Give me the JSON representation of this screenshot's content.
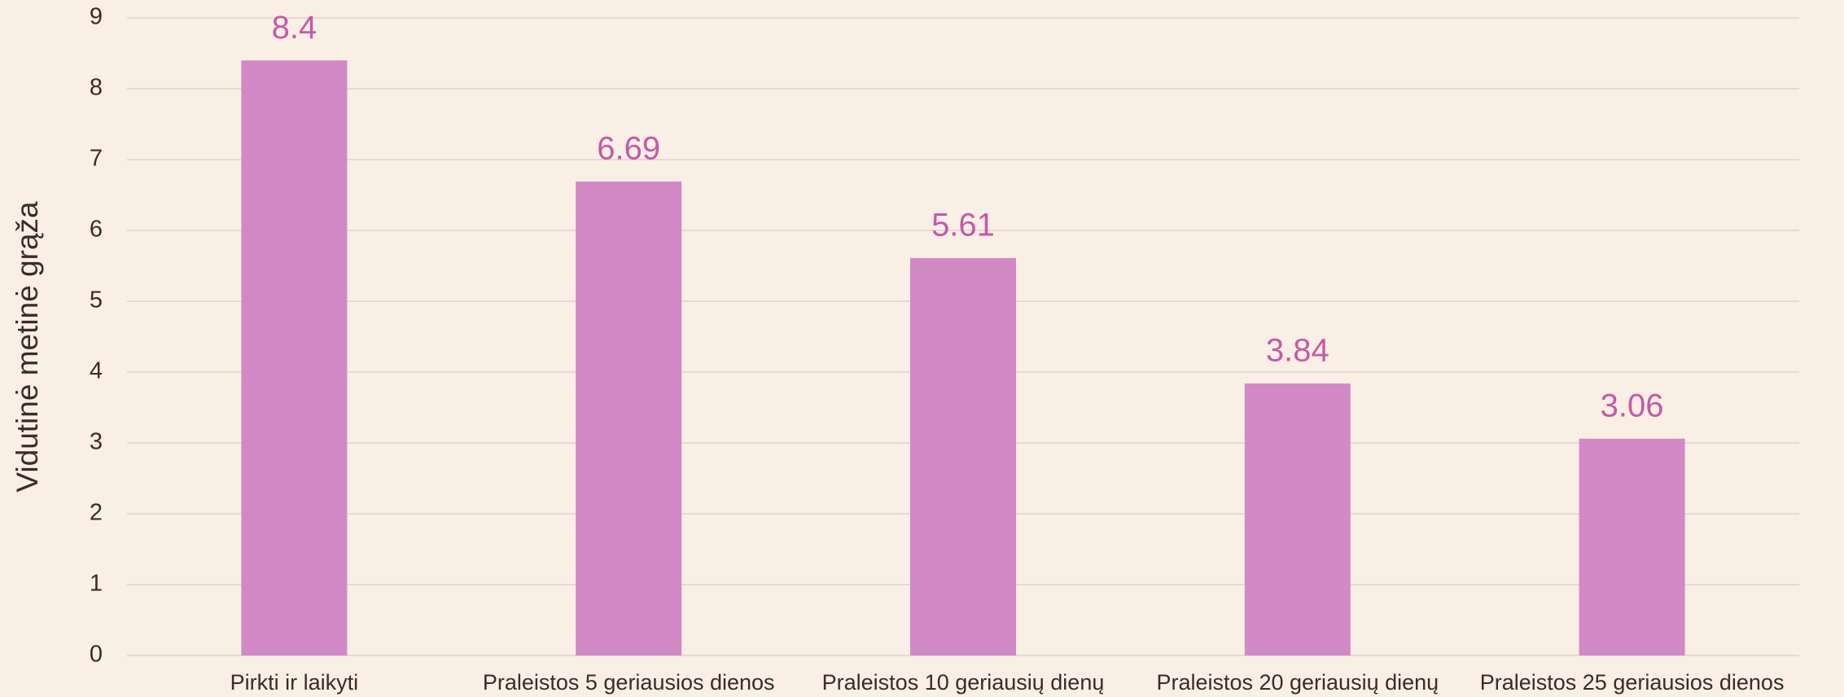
{
  "chart_data": {
    "type": "bar",
    "ylabel": "Vidutinė metinė grąža",
    "categories": [
      "Pirkti ir laikyti",
      "Praleistos 5 geriausios dienos",
      "Praleistos 10 geriausių dienų",
      "Praleistos 20 geriausių dienų",
      "Praleistos 25 geriausios dienos"
    ],
    "values": [
      8.4,
      6.69,
      5.61,
      3.84,
      3.06
    ],
    "color": "#d18ac5",
    "ylim": [
      0,
      9
    ],
    "yticks": [
      0,
      1,
      2,
      3,
      4,
      5,
      6,
      7,
      8,
      9
    ],
    "grid": true
  }
}
